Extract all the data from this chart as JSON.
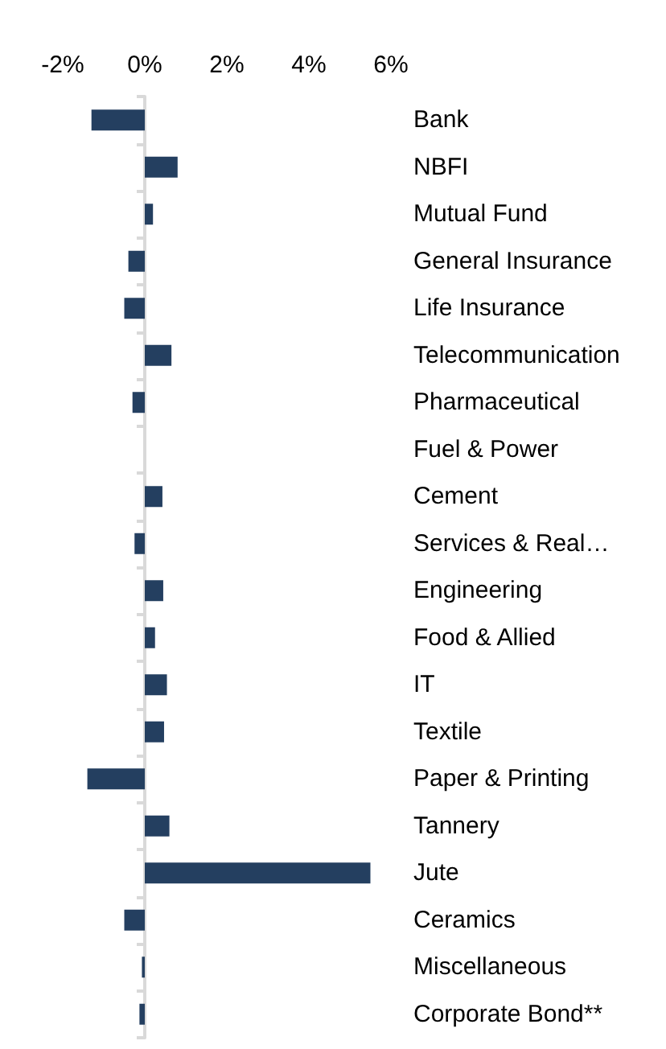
{
  "chart_data": {
    "type": "bar",
    "orientation": "horizontal",
    "categories": [
      "Bank",
      "NBFI",
      "Mutual Fund",
      "General Insurance",
      "Life Insurance",
      "Telecommunication",
      "Pharmaceutical",
      "Fuel & Power",
      "Cement",
      "Services & Real…",
      "Engineering",
      "Food & Allied",
      "IT",
      "Textile",
      "Paper & Printing",
      "Tannery",
      "Jute",
      "Ceramics",
      "Miscellaneous",
      "Corporate Bond**"
    ],
    "values": [
      -1.3,
      0.8,
      0.2,
      -0.4,
      -0.5,
      0.65,
      -0.3,
      0,
      0.43,
      -0.25,
      0.45,
      0.25,
      0.54,
      0.47,
      -1.4,
      0.6,
      5.5,
      -0.5,
      -0.07,
      -0.13
    ],
    "color": "#243f60",
    "xlim": [
      -2,
      6
    ],
    "xticks": [
      {
        "value": -2,
        "label": "-2%"
      },
      {
        "value": 0,
        "label": "0%"
      },
      {
        "value": 2,
        "label": "2%"
      },
      {
        "value": 4,
        "label": "4%"
      },
      {
        "value": 6,
        "label": "6%"
      }
    ]
  }
}
